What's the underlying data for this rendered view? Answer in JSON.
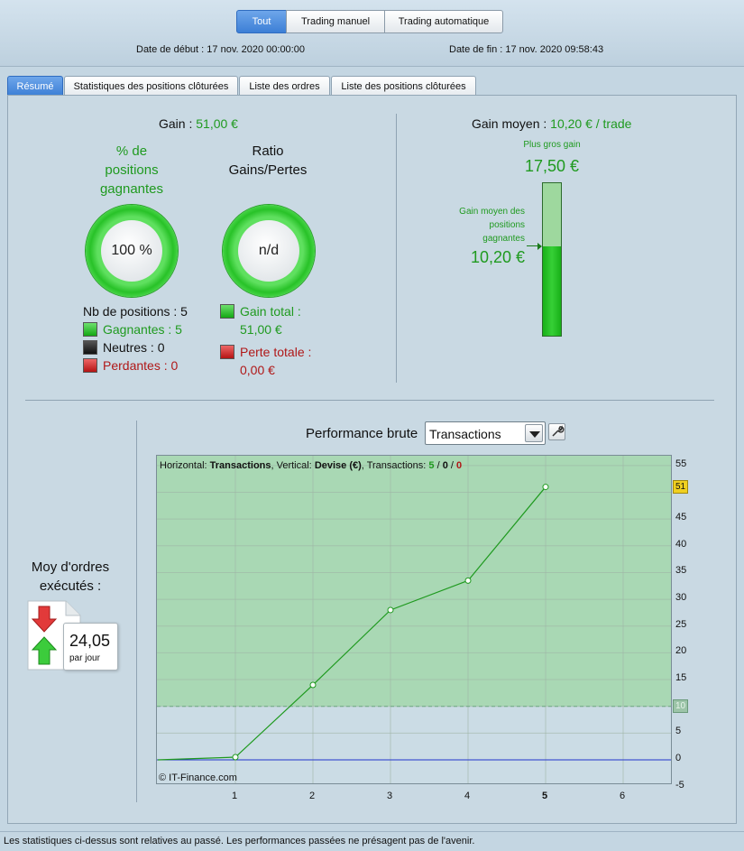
{
  "header": {
    "segments": [
      "Tout",
      "Trading manuel",
      "Trading automatique"
    ],
    "date_debut_label": "Date de début :",
    "date_debut": "17 nov. 2020 00:00:00",
    "date_fin_label": "Date de fin :",
    "date_fin": "17 nov. 2020 09:58:43"
  },
  "tabs": [
    "Résumé",
    "Statistiques des positions clôturées",
    "Liste des ordres",
    "Liste des positions clôturées"
  ],
  "summary": {
    "gain_label": "Gain :",
    "gain_value": "51,00 €",
    "pct_title_1": "% de",
    "pct_title_2": "positions",
    "pct_title_3": "gagnantes",
    "pct_value": "100 %",
    "ratio_title_1": "Ratio",
    "ratio_title_2": "Gains/Pertes",
    "ratio_value": "n/d",
    "nb_positions": "Nb de positions : 5",
    "gagnantes": "Gagnantes : 5",
    "neutres": "Neutres : 0",
    "perdantes": "Perdantes : 0",
    "gain_total_label": "Gain total :",
    "gain_total_value": "51,00 €",
    "perte_totale_label": "Perte totale :",
    "perte_totale_value": "0,00 €",
    "gain_moyen_label": "Gain moyen :",
    "gain_moyen_value": "10,20 € / trade",
    "plus_gros_gain_label": "Plus gros gain",
    "plus_gros_gain_value": "17,50 €",
    "gain_moyen_pos_label_1": "Gain moyen des",
    "gain_moyen_pos_label_2": "positions",
    "gain_moyen_pos_label_3": "gagnantes",
    "gain_moyen_pos_value": "10,20 €",
    "bar_fill_fraction": 0.583
  },
  "orders": {
    "title_1": "Moy d'ordres",
    "title_2": "exécutés :",
    "value": "24,05",
    "unit": "par jour"
  },
  "performance": {
    "title": "Performance brute",
    "select_value": "Transactions",
    "info_prefix": "Horizontal:",
    "info_h": "Transactions",
    "info_mid": ", Vertical:",
    "info_v": "Devise (€)",
    "info_tr": ", Transactions:",
    "info_w": "5",
    "info_n": "0",
    "info_l": "0",
    "copyright": "© IT-Finance.com",
    "last_value_badge": "51",
    "avg_badge": "10"
  },
  "chart_data": {
    "type": "line",
    "x": [
      0,
      1,
      2,
      3,
      4,
      5
    ],
    "y": [
      0,
      0.5,
      14,
      28,
      33.5,
      51
    ],
    "xlim": [
      0,
      6.5
    ],
    "ylim": [
      -5,
      55
    ],
    "x_ticks": [
      1,
      2,
      3,
      4,
      5,
      6
    ],
    "y_ticks": [
      -5,
      0,
      5,
      10,
      15,
      20,
      25,
      30,
      35,
      40,
      45,
      50,
      55
    ],
    "average_line": 10,
    "grid": true,
    "colors": {
      "line": "#1f9a1f",
      "fill": "#a9d8b4",
      "zero": "#2233cc"
    }
  },
  "footer": "Les statistiques ci-dessus sont relatives au passé. Les performances passées ne présagent pas de l'avenir."
}
